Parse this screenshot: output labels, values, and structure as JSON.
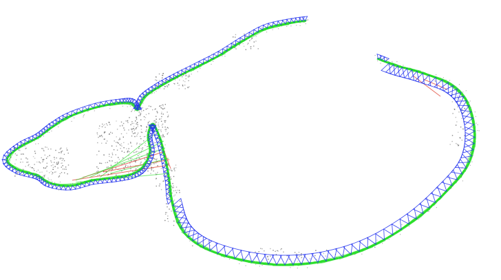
{
  "scene": {
    "kind": "slam-trajectory-map",
    "background_color": "#ffffff",
    "covisibility_edge_color": "#22dd22",
    "loop_edge_color": "#dd3322",
    "keyframe_color": "#2233ee",
    "map_point_color": "#555555"
  }
}
